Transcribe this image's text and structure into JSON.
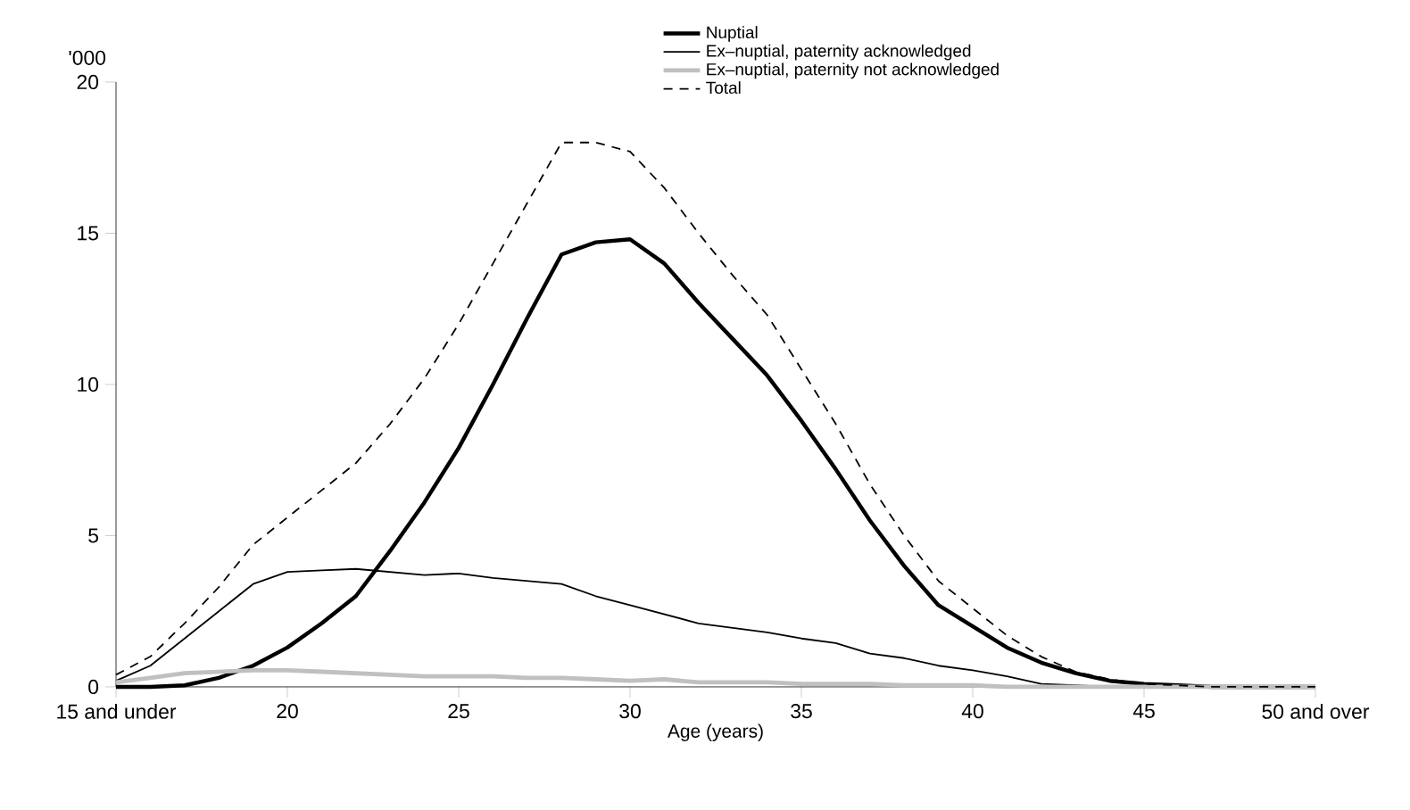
{
  "chart_data": {
    "type": "line",
    "xlabel": "Age (years)",
    "ylabel": "'000",
    "x": [
      15,
      16,
      17,
      18,
      19,
      20,
      21,
      22,
      23,
      24,
      25,
      26,
      27,
      28,
      29,
      30,
      31,
      32,
      33,
      34,
      35,
      36,
      37,
      38,
      39,
      40,
      41,
      42,
      43,
      44,
      45,
      46,
      47,
      48,
      49,
      50
    ],
    "series": [
      {
        "name": "Nuptial",
        "color": "#000000",
        "line_style": "solid",
        "values": [
          0,
          0,
          0.05,
          0.3,
          0.7,
          1.3,
          2.1,
          3.0,
          4.5,
          6.1,
          7.9,
          10.0,
          12.2,
          14.3,
          14.7,
          14.8,
          14.0,
          12.7,
          11.5,
          10.3,
          8.8,
          7.2,
          5.5,
          4.0,
          2.7,
          2.0,
          1.3,
          0.8,
          0.45,
          0.2,
          0.1,
          0.05,
          0,
          0,
          0,
          0
        ]
      },
      {
        "name": "Ex–nuptial, paternity acknowledged",
        "color": "#000000",
        "line_style": "solid",
        "values": [
          0.2,
          0.7,
          1.6,
          2.5,
          3.4,
          3.8,
          3.85,
          3.9,
          3.8,
          3.7,
          3.75,
          3.6,
          3.5,
          3.4,
          3.0,
          2.7,
          2.4,
          2.1,
          1.95,
          1.8,
          1.6,
          1.45,
          1.1,
          0.95,
          0.7,
          0.55,
          0.35,
          0.1,
          0.05,
          0,
          0,
          0,
          0,
          0,
          0,
          0
        ]
      },
      {
        "name": "Ex–nuptial, paternity not acknowledged",
        "color": "#c0c0c0",
        "line_style": "solid",
        "values": [
          0.15,
          0.3,
          0.45,
          0.5,
          0.55,
          0.55,
          0.5,
          0.45,
          0.4,
          0.35,
          0.35,
          0.35,
          0.3,
          0.3,
          0.25,
          0.2,
          0.25,
          0.15,
          0.15,
          0.15,
          0.1,
          0.1,
          0.1,
          0.05,
          0.05,
          0.05,
          0,
          0,
          0,
          0,
          0,
          0,
          0,
          0,
          0,
          0
        ]
      },
      {
        "name": "Total",
        "color": "#000000",
        "line_style": "dashed",
        "values": [
          0.4,
          1.0,
          2.1,
          3.3,
          4.7,
          5.6,
          6.5,
          7.4,
          8.7,
          10.2,
          12.0,
          14.0,
          16.0,
          18.0,
          18.0,
          17.7,
          16.5,
          15.0,
          13.6,
          12.3,
          10.5,
          8.7,
          6.7,
          5.0,
          3.5,
          2.6,
          1.7,
          1.0,
          0.5,
          0.25,
          0.1,
          0.05,
          0,
          0,
          0,
          0
        ]
      }
    ],
    "xlim": [
      15,
      50
    ],
    "xticks": [
      {
        "value": 15,
        "label": "15 and under"
      },
      20,
      25,
      30,
      35,
      40,
      45,
      {
        "value": 50,
        "label": "50 and over"
      }
    ],
    "ylim": [
      0,
      20
    ],
    "yticks": [
      0,
      5,
      10,
      15,
      20
    ],
    "grid": false,
    "legend": "top right",
    "marker": "none"
  }
}
